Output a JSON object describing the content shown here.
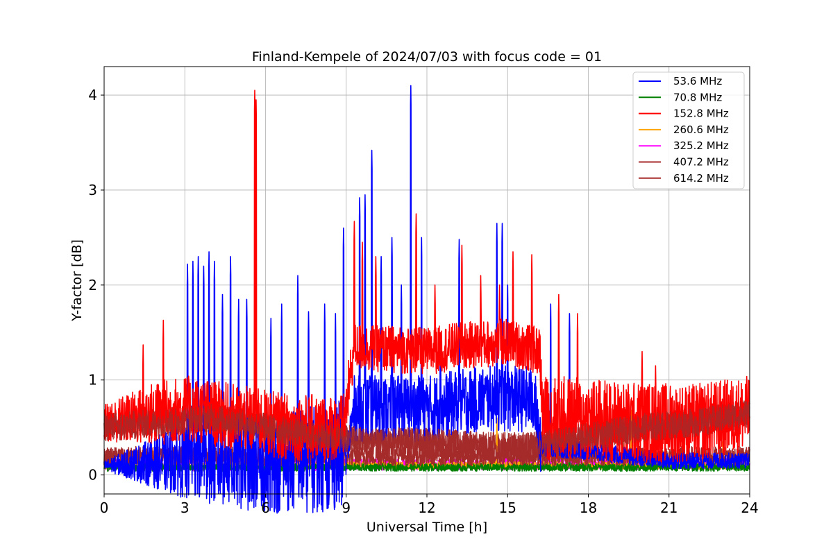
{
  "chart_data": {
    "type": "line",
    "title": "Finland-Kempele of 2024/07/03 with focus code = 01",
    "xlabel": "Universal Time [h]",
    "ylabel": "Y-factor [dB]",
    "xlim": [
      0,
      24
    ],
    "ylim": [
      -0.2,
      4.3
    ],
    "x_ticks": [
      0,
      3,
      6,
      9,
      12,
      15,
      18,
      21,
      24
    ],
    "y_ticks": [
      0,
      1,
      2,
      3,
      4
    ],
    "grid": true,
    "legend_position": "top-right",
    "series": [
      {
        "name": " 53.6 MHz",
        "color": "#0000ff",
        "baseline": [
          [
            0,
            0.1
          ],
          [
            3,
            0.15
          ],
          [
            6,
            0.12
          ],
          [
            9,
            0.2
          ],
          [
            9.3,
            0.7
          ],
          [
            10,
            0.7
          ],
          [
            12,
            0.7
          ],
          [
            13,
            0.75
          ],
          [
            14,
            0.8
          ],
          [
            16,
            0.8
          ],
          [
            16.2,
            0.3
          ],
          [
            18,
            0.25
          ],
          [
            21,
            0.15
          ],
          [
            24,
            0.15
          ]
        ],
        "amp": [
          [
            0,
            0.05
          ],
          [
            3,
            0.4
          ],
          [
            5,
            0.5
          ],
          [
            8.9,
            0.6
          ],
          [
            9,
            0.15
          ],
          [
            9.3,
            0.35
          ],
          [
            16.2,
            0.35
          ],
          [
            16.3,
            0.1
          ],
          [
            24,
            0.08
          ]
        ],
        "peaks": [
          [
            3.1,
            2.22
          ],
          [
            3.3,
            2.25
          ],
          [
            3.5,
            2.3
          ],
          [
            3.7,
            2.2
          ],
          [
            3.9,
            2.35
          ],
          [
            4.1,
            2.25
          ],
          [
            4.4,
            1.9
          ],
          [
            4.7,
            2.3
          ],
          [
            5.0,
            1.85
          ],
          [
            5.3,
            1.85
          ],
          [
            6.2,
            1.65
          ],
          [
            6.6,
            1.8
          ],
          [
            7.2,
            2.1
          ],
          [
            7.6,
            1.72
          ],
          [
            8.2,
            1.8
          ],
          [
            8.6,
            1.7
          ],
          [
            8.9,
            2.6
          ],
          [
            9.5,
            2.92
          ],
          [
            9.7,
            2.95
          ],
          [
            9.95,
            3.42
          ],
          [
            10.3,
            2.3
          ],
          [
            10.7,
            2.5
          ],
          [
            11.05,
            2.0
          ],
          [
            11.4,
            4.1
          ],
          [
            11.8,
            2.5
          ],
          [
            12.5,
            1.4
          ],
          [
            13.2,
            2.48
          ],
          [
            14.6,
            2.65
          ],
          [
            14.8,
            2.65
          ],
          [
            15.0,
            2.0
          ],
          [
            16.6,
            1.8
          ],
          [
            17.3,
            1.7
          ]
        ]
      },
      {
        "name": " 70.8 MHz",
        "color": "#008000",
        "baseline": [
          [
            0,
            0.08
          ],
          [
            24,
            0.08
          ]
        ],
        "amp": [
          [
            0,
            0.04
          ],
          [
            24,
            0.04
          ]
        ],
        "peaks": [
          [
            5.55,
            0.85
          ],
          [
            4.95,
            0.4
          ],
          [
            17.3,
            0.8
          ],
          [
            19.3,
            0.35
          ]
        ]
      },
      {
        "name": "152.8 MHz",
        "color": "#ff0000",
        "baseline": [
          [
            0,
            0.55
          ],
          [
            2,
            0.65
          ],
          [
            3,
            0.7
          ],
          [
            5,
            0.6
          ],
          [
            7,
            0.5
          ],
          [
            8.9,
            0.5
          ],
          [
            9.3,
            1.35
          ],
          [
            12,
            1.3
          ],
          [
            13,
            1.35
          ],
          [
            15,
            1.4
          ],
          [
            16.2,
            1.3
          ],
          [
            16.3,
            0.6
          ],
          [
            17,
            0.6
          ],
          [
            20,
            0.55
          ],
          [
            22,
            0.55
          ],
          [
            24,
            0.65
          ]
        ],
        "amp": [
          [
            0,
            0.2
          ],
          [
            2,
            0.35
          ],
          [
            5,
            0.35
          ],
          [
            8.9,
            0.35
          ],
          [
            9.3,
            0.25
          ],
          [
            16.2,
            0.25
          ],
          [
            16.3,
            0.45
          ],
          [
            24,
            0.4
          ]
        ],
        "peaks": [
          [
            1.45,
            1.37
          ],
          [
            2.2,
            1.63
          ],
          [
            5.6,
            4.05
          ],
          [
            5.65,
            3.95
          ],
          [
            9.3,
            2.67
          ],
          [
            9.6,
            2.45
          ],
          [
            10.1,
            2.3
          ],
          [
            11.6,
            2.75
          ],
          [
            12.3,
            2.0
          ],
          [
            13.3,
            2.42
          ],
          [
            14.0,
            2.1
          ],
          [
            14.7,
            2.0
          ],
          [
            15.2,
            2.35
          ],
          [
            15.9,
            2.32
          ],
          [
            16.9,
            1.9
          ],
          [
            17.6,
            1.7
          ],
          [
            20.0,
            1.3
          ],
          [
            20.5,
            1.15
          ]
        ]
      },
      {
        "name": "260.6 MHz",
        "color": "#ffa500",
        "baseline": [
          [
            0,
            0.1
          ],
          [
            24,
            0.1
          ]
        ],
        "amp": [
          [
            0,
            0.04
          ],
          [
            24,
            0.04
          ]
        ],
        "peaks": [
          [
            14.6,
            0.6
          ],
          [
            19.6,
            0.68
          ],
          [
            23.0,
            0.35
          ]
        ]
      },
      {
        "name": "325.2 MHz",
        "color": "#ff00ff",
        "baseline": [
          [
            0,
            0.1
          ],
          [
            24,
            0.12
          ]
        ],
        "amp": [
          [
            0,
            0.06
          ],
          [
            24,
            0.06
          ]
        ],
        "peaks": [
          [
            0.2,
            0.16
          ],
          [
            22.5,
            0.28
          ]
        ]
      },
      {
        "name": "407.2 MHz",
        "color": "#a52a2a",
        "baseline": [
          [
            0,
            0.2
          ],
          [
            24,
            0.2
          ]
        ],
        "amp": [
          [
            0,
            0.1
          ],
          [
            24,
            0.1
          ]
        ],
        "peaks": []
      },
      {
        "name": "614.2 MHz",
        "color": "#a52a2a",
        "baseline": [
          [
            0,
            0.5
          ],
          [
            2,
            0.55
          ],
          [
            4,
            0.6
          ],
          [
            6,
            0.5
          ],
          [
            8,
            0.4
          ],
          [
            10,
            0.35
          ],
          [
            12,
            0.35
          ],
          [
            14,
            0.3
          ],
          [
            16,
            0.3
          ],
          [
            18,
            0.4
          ],
          [
            20,
            0.5
          ],
          [
            22,
            0.55
          ],
          [
            24,
            0.65
          ]
        ],
        "amp": [
          [
            0,
            0.15
          ],
          [
            24,
            0.15
          ]
        ],
        "peaks": []
      }
    ]
  }
}
